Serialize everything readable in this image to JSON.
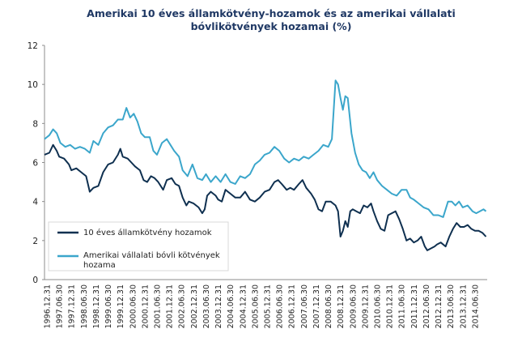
{
  "chart_data": {
    "type": "line",
    "title_line1": "Amerikai  10 éves államkötvény-hozamok  és az amerikai vállalati",
    "title_line2": "bóvlikötvények  hozamai (%)",
    "xlabel": "",
    "ylabel": "",
    "ylim": [
      0,
      12
    ],
    "yticks": [
      "0",
      "2",
      "4",
      "6",
      "8",
      "10",
      "12"
    ],
    "xlim": [
      1996.9,
      2015.0
    ],
    "xticks": [
      "1996.12.31",
      "1997.06.30",
      "1997.12.31",
      "1998.06.30",
      "1998.12.31",
      "1999.06.30",
      "1999.12.31",
      "2000.06.30",
      "2000.12.31",
      "2001.06.30",
      "2001.12.31",
      "2002.06.30",
      "2002.12.31",
      "2003.06.30",
      "2003.12.31",
      "2004.06.30",
      "2004.12.31",
      "2005.06.30",
      "2005.12.31",
      "2006.06.30",
      "2006.12.31",
      "2007.06.30",
      "2007.12.31",
      "2008.06.30",
      "2008.12.31",
      "2009.06.30",
      "2009.12.31",
      "2010.06.30",
      "2010.12.31",
      "2011.06.30",
      "2011.12.31",
      "2012.06.30",
      "2012.12.31",
      "2013.06.30",
      "2013.12.31",
      "2014.06.30"
    ],
    "grid": false,
    "legend_position": "bottom-left",
    "series": [
      {
        "name": "10 éves államkötvény hozamok",
        "color": "#0f3050",
        "points": [
          [
            1996.9,
            6.4
          ],
          [
            1997.1,
            6.5
          ],
          [
            1997.25,
            6.9
          ],
          [
            1997.4,
            6.6
          ],
          [
            1997.5,
            6.3
          ],
          [
            1997.7,
            6.2
          ],
          [
            1997.9,
            5.9
          ],
          [
            1998.0,
            5.6
          ],
          [
            1998.2,
            5.7
          ],
          [
            1998.4,
            5.5
          ],
          [
            1998.6,
            5.3
          ],
          [
            1998.75,
            4.5
          ],
          [
            1998.9,
            4.7
          ],
          [
            1999.1,
            4.8
          ],
          [
            1999.3,
            5.5
          ],
          [
            1999.5,
            5.9
          ],
          [
            1999.7,
            6.0
          ],
          [
            1999.9,
            6.4
          ],
          [
            2000.0,
            6.7
          ],
          [
            2000.1,
            6.3
          ],
          [
            2000.3,
            6.2
          ],
          [
            2000.45,
            6.0
          ],
          [
            2000.6,
            5.8
          ],
          [
            2000.8,
            5.6
          ],
          [
            2000.95,
            5.1
          ],
          [
            2001.1,
            5.0
          ],
          [
            2001.25,
            5.3
          ],
          [
            2001.4,
            5.2
          ],
          [
            2001.55,
            5.0
          ],
          [
            2001.75,
            4.6
          ],
          [
            2001.9,
            5.1
          ],
          [
            2002.1,
            5.2
          ],
          [
            2002.25,
            4.9
          ],
          [
            2002.4,
            4.8
          ],
          [
            2002.55,
            4.2
          ],
          [
            2002.7,
            3.8
          ],
          [
            2002.8,
            4.0
          ],
          [
            2003.0,
            3.9
          ],
          [
            2003.2,
            3.7
          ],
          [
            2003.35,
            3.4
          ],
          [
            2003.45,
            3.6
          ],
          [
            2003.55,
            4.3
          ],
          [
            2003.7,
            4.5
          ],
          [
            2003.9,
            4.3
          ],
          [
            2004.0,
            4.1
          ],
          [
            2004.15,
            4.0
          ],
          [
            2004.3,
            4.6
          ],
          [
            2004.5,
            4.4
          ],
          [
            2004.7,
            4.2
          ],
          [
            2004.9,
            4.2
          ],
          [
            2005.1,
            4.5
          ],
          [
            2005.3,
            4.1
          ],
          [
            2005.5,
            4.0
          ],
          [
            2005.7,
            4.2
          ],
          [
            2005.9,
            4.5
          ],
          [
            2006.1,
            4.6
          ],
          [
            2006.3,
            5.0
          ],
          [
            2006.45,
            5.1
          ],
          [
            2006.6,
            4.9
          ],
          [
            2006.8,
            4.6
          ],
          [
            2006.95,
            4.7
          ],
          [
            2007.1,
            4.6
          ],
          [
            2007.3,
            4.9
          ],
          [
            2007.45,
            5.1
          ],
          [
            2007.6,
            4.7
          ],
          [
            2007.8,
            4.4
          ],
          [
            2007.95,
            4.1
          ],
          [
            2008.1,
            3.6
          ],
          [
            2008.25,
            3.5
          ],
          [
            2008.4,
            4.0
          ],
          [
            2008.6,
            4.0
          ],
          [
            2008.8,
            3.8
          ],
          [
            2008.9,
            3.5
          ],
          [
            2009.0,
            2.2
          ],
          [
            2009.1,
            2.5
          ],
          [
            2009.2,
            3.0
          ],
          [
            2009.3,
            2.7
          ],
          [
            2009.4,
            3.5
          ],
          [
            2009.5,
            3.6
          ],
          [
            2009.65,
            3.5
          ],
          [
            2009.8,
            3.4
          ],
          [
            2009.95,
            3.8
          ],
          [
            2010.1,
            3.7
          ],
          [
            2010.25,
            3.9
          ],
          [
            2010.35,
            3.5
          ],
          [
            2010.5,
            3.0
          ],
          [
            2010.65,
            2.6
          ],
          [
            2010.8,
            2.5
          ],
          [
            2010.95,
            3.3
          ],
          [
            2011.1,
            3.4
          ],
          [
            2011.25,
            3.5
          ],
          [
            2011.4,
            3.1
          ],
          [
            2011.55,
            2.6
          ],
          [
            2011.7,
            2.0
          ],
          [
            2011.85,
            2.1
          ],
          [
            2012.0,
            1.9
          ],
          [
            2012.15,
            2.0
          ],
          [
            2012.3,
            2.2
          ],
          [
            2012.45,
            1.7
          ],
          [
            2012.55,
            1.5
          ],
          [
            2012.7,
            1.6
          ],
          [
            2012.85,
            1.7
          ],
          [
            2012.95,
            1.8
          ],
          [
            2013.1,
            1.9
          ],
          [
            2013.3,
            1.7
          ],
          [
            2013.45,
            2.2
          ],
          [
            2013.6,
            2.6
          ],
          [
            2013.75,
            2.9
          ],
          [
            2013.9,
            2.7
          ],
          [
            2014.05,
            2.7
          ],
          [
            2014.2,
            2.8
          ],
          [
            2014.35,
            2.6
          ],
          [
            2014.5,
            2.5
          ],
          [
            2014.65,
            2.5
          ],
          [
            2014.8,
            2.4
          ],
          [
            2014.95,
            2.2
          ]
        ]
      },
      {
        "name": "Amerikai vállalati bóvli kötvények hozama",
        "color": "#3ba6cb",
        "points": [
          [
            1996.9,
            7.2
          ],
          [
            1997.1,
            7.4
          ],
          [
            1997.25,
            7.7
          ],
          [
            1997.4,
            7.5
          ],
          [
            1997.55,
            7.0
          ],
          [
            1997.75,
            6.8
          ],
          [
            1997.95,
            6.9
          ],
          [
            1998.15,
            6.7
          ],
          [
            1998.35,
            6.8
          ],
          [
            1998.55,
            6.7
          ],
          [
            1998.75,
            6.5
          ],
          [
            1998.9,
            7.1
          ],
          [
            1999.1,
            6.9
          ],
          [
            1999.3,
            7.5
          ],
          [
            1999.5,
            7.8
          ],
          [
            1999.7,
            7.9
          ],
          [
            1999.9,
            8.2
          ],
          [
            2000.1,
            8.2
          ],
          [
            2000.25,
            8.8
          ],
          [
            2000.4,
            8.3
          ],
          [
            2000.55,
            8.5
          ],
          [
            2000.7,
            8.1
          ],
          [
            2000.85,
            7.5
          ],
          [
            2001.0,
            7.3
          ],
          [
            2001.2,
            7.3
          ],
          [
            2001.35,
            6.6
          ],
          [
            2001.5,
            6.4
          ],
          [
            2001.7,
            7.0
          ],
          [
            2001.9,
            7.2
          ],
          [
            2002.05,
            6.9
          ],
          [
            2002.2,
            6.6
          ],
          [
            2002.4,
            6.3
          ],
          [
            2002.55,
            5.6
          ],
          [
            2002.75,
            5.3
          ],
          [
            2002.95,
            5.9
          ],
          [
            2003.15,
            5.2
          ],
          [
            2003.35,
            5.1
          ],
          [
            2003.5,
            5.4
          ],
          [
            2003.7,
            5.0
          ],
          [
            2003.9,
            5.3
          ],
          [
            2004.1,
            5.0
          ],
          [
            2004.3,
            5.4
          ],
          [
            2004.5,
            5.0
          ],
          [
            2004.7,
            4.9
          ],
          [
            2004.9,
            5.3
          ],
          [
            2005.1,
            5.2
          ],
          [
            2005.3,
            5.4
          ],
          [
            2005.5,
            5.9
          ],
          [
            2005.7,
            6.1
          ],
          [
            2005.9,
            6.4
          ],
          [
            2006.1,
            6.5
          ],
          [
            2006.3,
            6.8
          ],
          [
            2006.5,
            6.6
          ],
          [
            2006.7,
            6.2
          ],
          [
            2006.9,
            6.0
          ],
          [
            2007.1,
            6.2
          ],
          [
            2007.3,
            6.1
          ],
          [
            2007.5,
            6.3
          ],
          [
            2007.7,
            6.2
          ],
          [
            2007.9,
            6.4
          ],
          [
            2008.1,
            6.6
          ],
          [
            2008.3,
            6.9
          ],
          [
            2008.5,
            6.8
          ],
          [
            2008.65,
            7.2
          ],
          [
            2008.8,
            10.2
          ],
          [
            2008.9,
            10.0
          ],
          [
            2009.0,
            9.3
          ],
          [
            2009.1,
            8.7
          ],
          [
            2009.2,
            9.4
          ],
          [
            2009.3,
            9.3
          ],
          [
            2009.45,
            7.5
          ],
          [
            2009.6,
            6.5
          ],
          [
            2009.75,
            5.9
          ],
          [
            2009.9,
            5.6
          ],
          [
            2010.05,
            5.5
          ],
          [
            2010.2,
            5.2
          ],
          [
            2010.35,
            5.5
          ],
          [
            2010.5,
            5.1
          ],
          [
            2010.7,
            4.8
          ],
          [
            2010.9,
            4.6
          ],
          [
            2011.1,
            4.4
          ],
          [
            2011.3,
            4.3
          ],
          [
            2011.5,
            4.6
          ],
          [
            2011.7,
            4.6
          ],
          [
            2011.85,
            4.2
          ],
          [
            2012.0,
            4.1
          ],
          [
            2012.2,
            3.9
          ],
          [
            2012.4,
            3.7
          ],
          [
            2012.6,
            3.6
          ],
          [
            2012.8,
            3.3
          ],
          [
            2013.0,
            3.3
          ],
          [
            2013.2,
            3.2
          ],
          [
            2013.4,
            4.0
          ],
          [
            2013.55,
            4.0
          ],
          [
            2013.7,
            3.8
          ],
          [
            2013.85,
            4.0
          ],
          [
            2014.0,
            3.7
          ],
          [
            2014.2,
            3.8
          ],
          [
            2014.4,
            3.5
          ],
          [
            2014.55,
            3.4
          ],
          [
            2014.7,
            3.5
          ],
          [
            2014.85,
            3.6
          ],
          [
            2014.95,
            3.5
          ]
        ]
      }
    ]
  }
}
